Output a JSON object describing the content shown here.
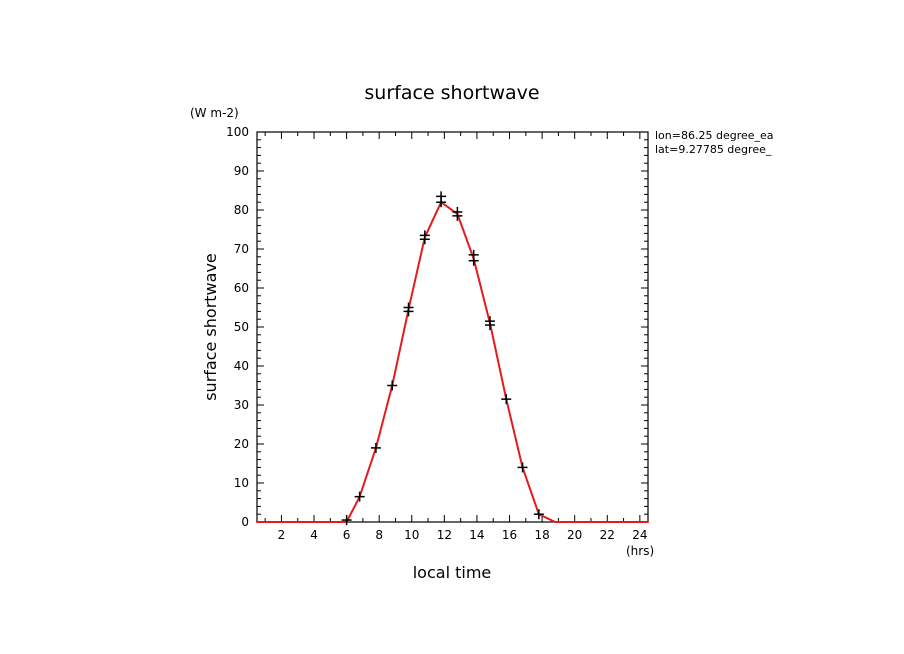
{
  "chart_data": {
    "type": "line",
    "title": "surface shortwave",
    "xlabel": "local time",
    "ylabel": "surface shortwave",
    "x_unit": "(hrs)",
    "y_unit": "(W m-2)",
    "annotations": [
      "lon=86.25 degree_ea",
      "lat=9.27785 degree_"
    ],
    "xlim": [
      0.5,
      24.5
    ],
    "ylim": [
      0,
      100
    ],
    "x_ticks": [
      2,
      4,
      6,
      8,
      10,
      12,
      14,
      16,
      18,
      20,
      22,
      24
    ],
    "y_ticks": [
      0,
      10,
      20,
      30,
      40,
      50,
      60,
      70,
      80,
      90,
      100
    ],
    "grid": false,
    "line_color": "#e41a1c",
    "marker_color": "#000000",
    "series": [
      {
        "values": [
          {
            "x": 0.5,
            "y": 0
          },
          {
            "x": 1.5,
            "y": 0
          },
          {
            "x": 2.5,
            "y": 0
          },
          {
            "x": 3.5,
            "y": 0
          },
          {
            "x": 4.5,
            "y": 0
          },
          {
            "x": 5.5,
            "y": 0
          },
          {
            "x": 6.0,
            "y": 0
          },
          {
            "x": 6.8,
            "y": 6.5
          },
          {
            "x": 7.8,
            "y": 19
          },
          {
            "x": 8.8,
            "y": 35
          },
          {
            "x": 9.8,
            "y": 54.5
          },
          {
            "x": 10.8,
            "y": 73
          },
          {
            "x": 11.8,
            "y": 82
          },
          {
            "x": 12.8,
            "y": 79
          },
          {
            "x": 13.8,
            "y": 67.5
          },
          {
            "x": 14.8,
            "y": 51
          },
          {
            "x": 15.8,
            "y": 31.5
          },
          {
            "x": 16.8,
            "y": 14
          },
          {
            "x": 17.8,
            "y": 2
          },
          {
            "x": 18.8,
            "y": 0
          },
          {
            "x": 19.8,
            "y": 0
          },
          {
            "x": 20.8,
            "y": 0
          },
          {
            "x": 21.8,
            "y": 0
          },
          {
            "x": 22.8,
            "y": 0
          },
          {
            "x": 23.8,
            "y": 0
          },
          {
            "x": 24.5,
            "y": 0
          }
        ],
        "markers": [
          {
            "x": 6.0,
            "y": 0.5
          },
          {
            "x": 6.8,
            "y": 6.5
          },
          {
            "x": 7.8,
            "y": 19
          },
          {
            "x": 8.8,
            "y": 35
          },
          {
            "x": 9.8,
            "y": 54
          },
          {
            "x": 9.8,
            "y": 55
          },
          {
            "x": 10.8,
            "y": 72.5
          },
          {
            "x": 10.8,
            "y": 73.5
          },
          {
            "x": 11.8,
            "y": 82
          },
          {
            "x": 11.8,
            "y": 83.5
          },
          {
            "x": 12.8,
            "y": 78.5
          },
          {
            "x": 12.8,
            "y": 79.5
          },
          {
            "x": 13.8,
            "y": 67
          },
          {
            "x": 13.8,
            "y": 68.5
          },
          {
            "x": 14.8,
            "y": 50.5
          },
          {
            "x": 14.8,
            "y": 51.5
          },
          {
            "x": 15.8,
            "y": 31.5
          },
          {
            "x": 16.8,
            "y": 14
          },
          {
            "x": 17.8,
            "y": 2
          }
        ]
      }
    ]
  }
}
